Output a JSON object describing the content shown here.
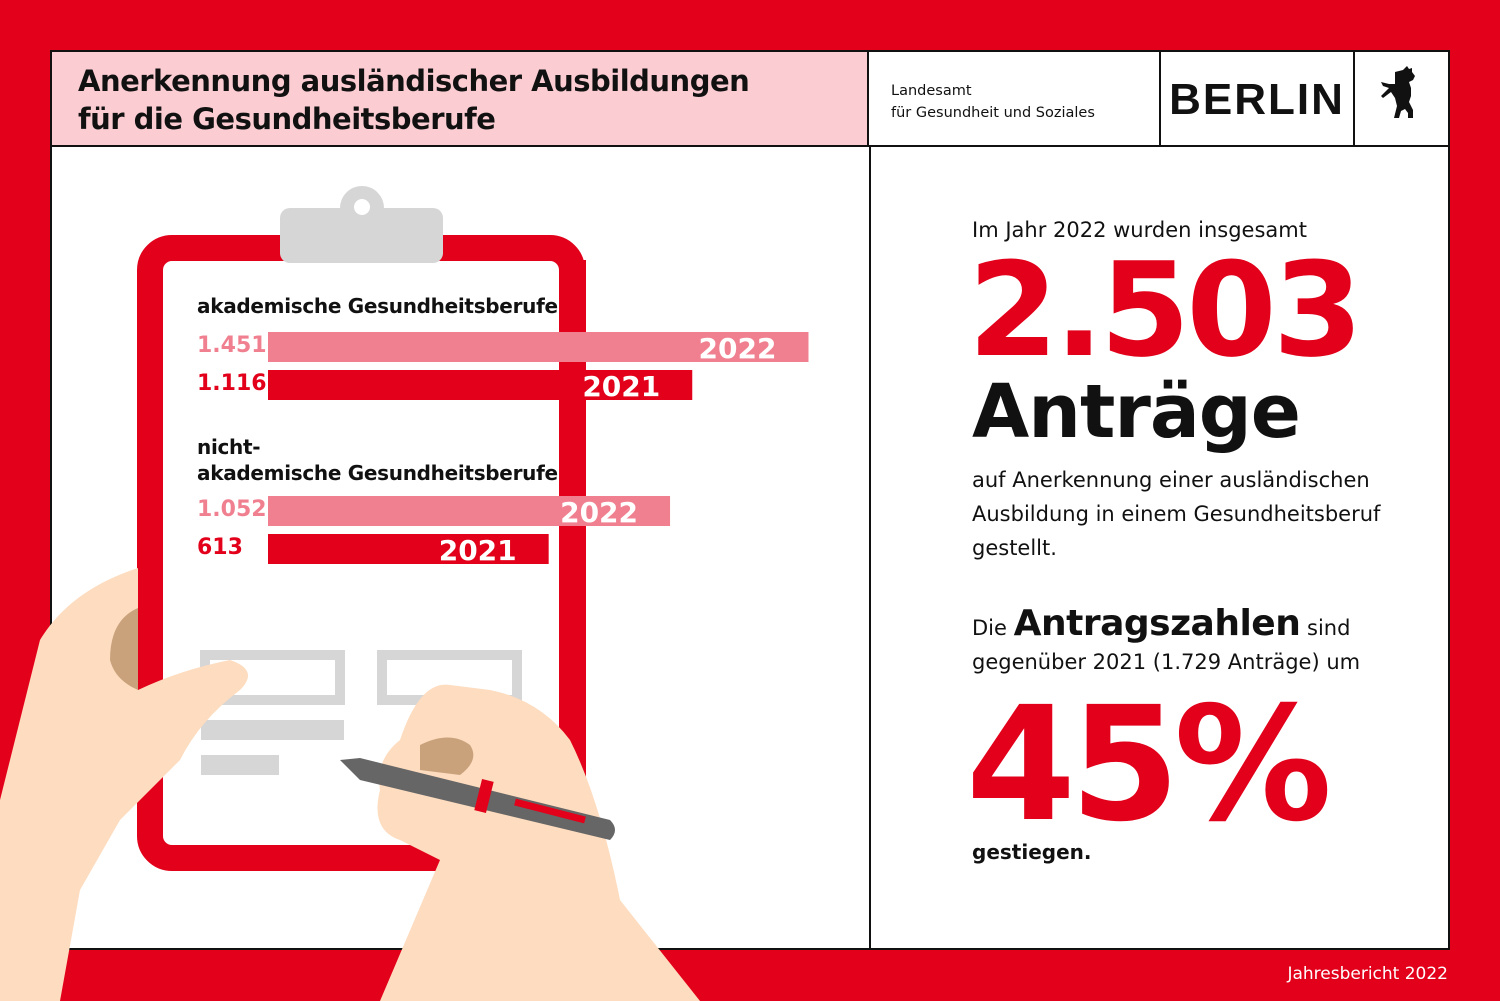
{
  "header": {
    "title_line1": "Anerkennung ausländischer Ausbildungen",
    "title_line2": "für die Gesundheitsberufe",
    "org_line1": "Landesamt",
    "org_line2": "für Gesundheit und Soziales",
    "brand": "BERLIN",
    "logo": "berlin-bear-icon"
  },
  "colors": {
    "red": "#e2001a",
    "pink": "#f08090",
    "header_pink": "#fbcdd3"
  },
  "chart_data": {
    "type": "bar",
    "orientation": "horizontal",
    "groups": [
      {
        "label": "akademische Gesundheitsberufe",
        "bars": [
          {
            "year": "2022",
            "value": 1451,
            "value_label": "1.451"
          },
          {
            "year": "2021",
            "value": 1116,
            "value_label": "1.116"
          }
        ]
      },
      {
        "label_line1": "nicht-",
        "label_line2": "akademische Gesundheitsberufe",
        "bars": [
          {
            "year": "2022",
            "value": 1052,
            "value_label": "1.052"
          },
          {
            "year": "2021",
            "value": 613,
            "value_label": "613"
          }
        ]
      }
    ],
    "series_colors": {
      "2022": "#f08090",
      "2021": "#e2001a"
    }
  },
  "stats": {
    "intro": "Im Jahr 2022 wurden insgesamt",
    "total": "2.503",
    "total_unit": "Anträge",
    "desc_line1": "auf Anerkennung einer ausländischen",
    "desc_line2": "Ausbildung in einem Gesundheitsberuf",
    "desc_line3": "gestellt.",
    "change_pre": "Die",
    "change_bold": "Antragszahlen",
    "change_post": "sind",
    "change_line2": "gegenüber 2021 (1.729 Anträge) um",
    "percent": "45%",
    "outro": "gestiegen."
  },
  "footer": "Jahresbericht 2022"
}
